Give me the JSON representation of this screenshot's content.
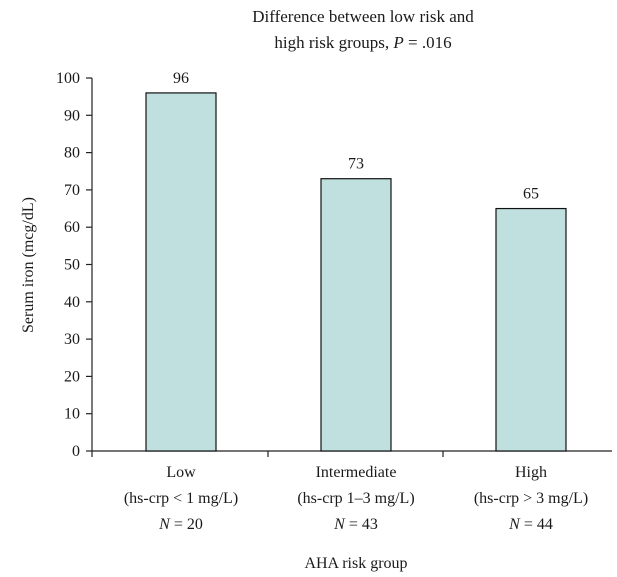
{
  "chart_data": {
    "type": "bar",
    "title": {
      "line1": "Difference between low risk and",
      "line2_prefix": "high risk groups, ",
      "line2_p": "P",
      "line2_suffix": " = .016"
    },
    "categories": [
      {
        "name": "Low",
        "detail": "(hs-crp < 1 mg/L)",
        "n_prefix": "N",
        "n_suffix": " = 20"
      },
      {
        "name": "Intermediate",
        "detail": "(hs-crp 1–3 mg/L)",
        "n_prefix": "N",
        "n_suffix": " = 43"
      },
      {
        "name": "High",
        "detail": "(hs-crp > 3 mg/L)",
        "n_prefix": "N",
        "n_suffix": " = 44"
      }
    ],
    "values": [
      96,
      73,
      65
    ],
    "data_labels": [
      "96",
      "73",
      "65"
    ],
    "xlabel": "AHA risk group",
    "ylabel": "Serum iron (mcg/dL)",
    "ylim": [
      0,
      100
    ],
    "yticks": [
      "0",
      "10",
      "20",
      "30",
      "40",
      "50",
      "60",
      "70",
      "80",
      "90",
      "100"
    ],
    "grid": false,
    "bar_color": "#bfe0df",
    "bar_edge_color": "#111111"
  }
}
